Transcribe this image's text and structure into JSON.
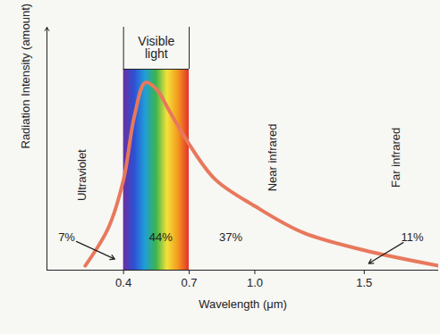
{
  "chart_data": {
    "type": "line",
    "x": [
      0.225,
      0.33,
      0.4,
      0.45,
      0.5,
      0.55,
      0.61,
      0.7,
      0.82,
      1.0,
      1.22,
      1.5,
      1.84
    ],
    "values": [
      2,
      19,
      41,
      70,
      85,
      82,
      72,
      57,
      41,
      29,
      17,
      9,
      2
    ],
    "color": "#e8785c",
    "xlabel": "Wavelength (μm)",
    "ylabel": "Radiation Intensity (amount)",
    "xlim": [
      0.05,
      1.84
    ],
    "ylim": [
      0,
      110
    ],
    "xticks": [
      0.4,
      0.7,
      {
        "value": 1,
        "label": "1.0"
      },
      1.5
    ],
    "yticks": [],
    "tick_labels": "x",
    "grid": false,
    "bands": [
      {
        "label": "Visible light",
        "x": [
          0.4,
          0.7
        ],
        "top": 91,
        "colors": [
          "#6b2f9e",
          "#2d4fd6",
          "#1f9fd8",
          "#3cb44b",
          "#f3e23a",
          "#f39a1e",
          "#e5322a"
        ]
      }
    ],
    "region_labels": [
      {
        "text": "Ultraviolet",
        "x": 0.21,
        "y": 43
      },
      {
        "text": "Near infrared",
        "x": 1.08,
        "y": 51
      },
      {
        "text": "Far infrared",
        "x": 1.645,
        "y": 51
      }
    ],
    "annotations": [
      {
        "text": "7%",
        "x": 0.14,
        "y": 15,
        "arrow_to": [
          0.36,
          5
        ]
      },
      {
        "text": "44%",
        "x": 0.57,
        "y": 15
      },
      {
        "text": "37%",
        "x": 0.89,
        "y": 15
      },
      {
        "text": "11%",
        "x": 1.72,
        "y": 15,
        "arrow_to": [
          1.52,
          3
        ]
      }
    ]
  }
}
